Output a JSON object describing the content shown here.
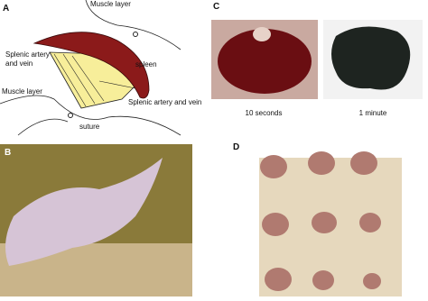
{
  "panels": [
    {
      "label": "A",
      "annotations": {
        "muscle_top": "Muscle layer",
        "splenic_left": [
          "Splenic artery",
          "and vein"
        ],
        "spleen": "spleen",
        "muscle_left": "Muscle layer",
        "splenic_right": "Splenic artery and vein",
        "suture": "suture"
      }
    },
    {
      "label": "B"
    },
    {
      "label": "C",
      "captions": [
        "10 seconds",
        "1 minute"
      ]
    },
    {
      "label": "D"
    }
  ]
}
